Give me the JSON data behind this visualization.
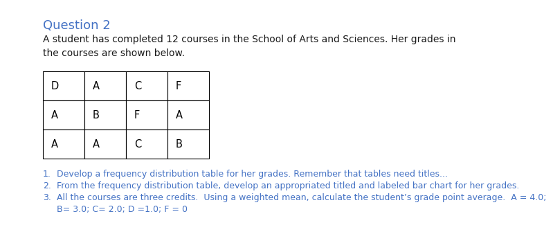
{
  "title": "Question 2",
  "title_color": "#4472C4",
  "title_fontsize": 13,
  "body_text": "A student has completed 12 courses in the School of Arts and Sciences. Her grades in\nthe courses are shown below.",
  "body_fontsize": 10,
  "body_color": "#1a1a1a",
  "table_data": [
    [
      "D",
      "A",
      "C",
      "F"
    ],
    [
      "A",
      "B",
      "F",
      "A"
    ],
    [
      "A",
      "A",
      "C",
      "B"
    ]
  ],
  "table_cell_fontsize": 10.5,
  "numbered_items": [
    "Develop a frequency distribution table for her grades. Remember that tables need titles...",
    "From the frequency distribution table, develop an appropriated titled and labeled bar chart for her grades.",
    "All the courses are three credits.  Using a weighted mean, calculate the student’s grade point average.  A = 4.0;\nB= 3.0; C= 2.0; D =1.0; F = 0"
  ],
  "numbered_fontsize": 9,
  "numbered_color": "#4472C4",
  "background_color": "#ffffff"
}
